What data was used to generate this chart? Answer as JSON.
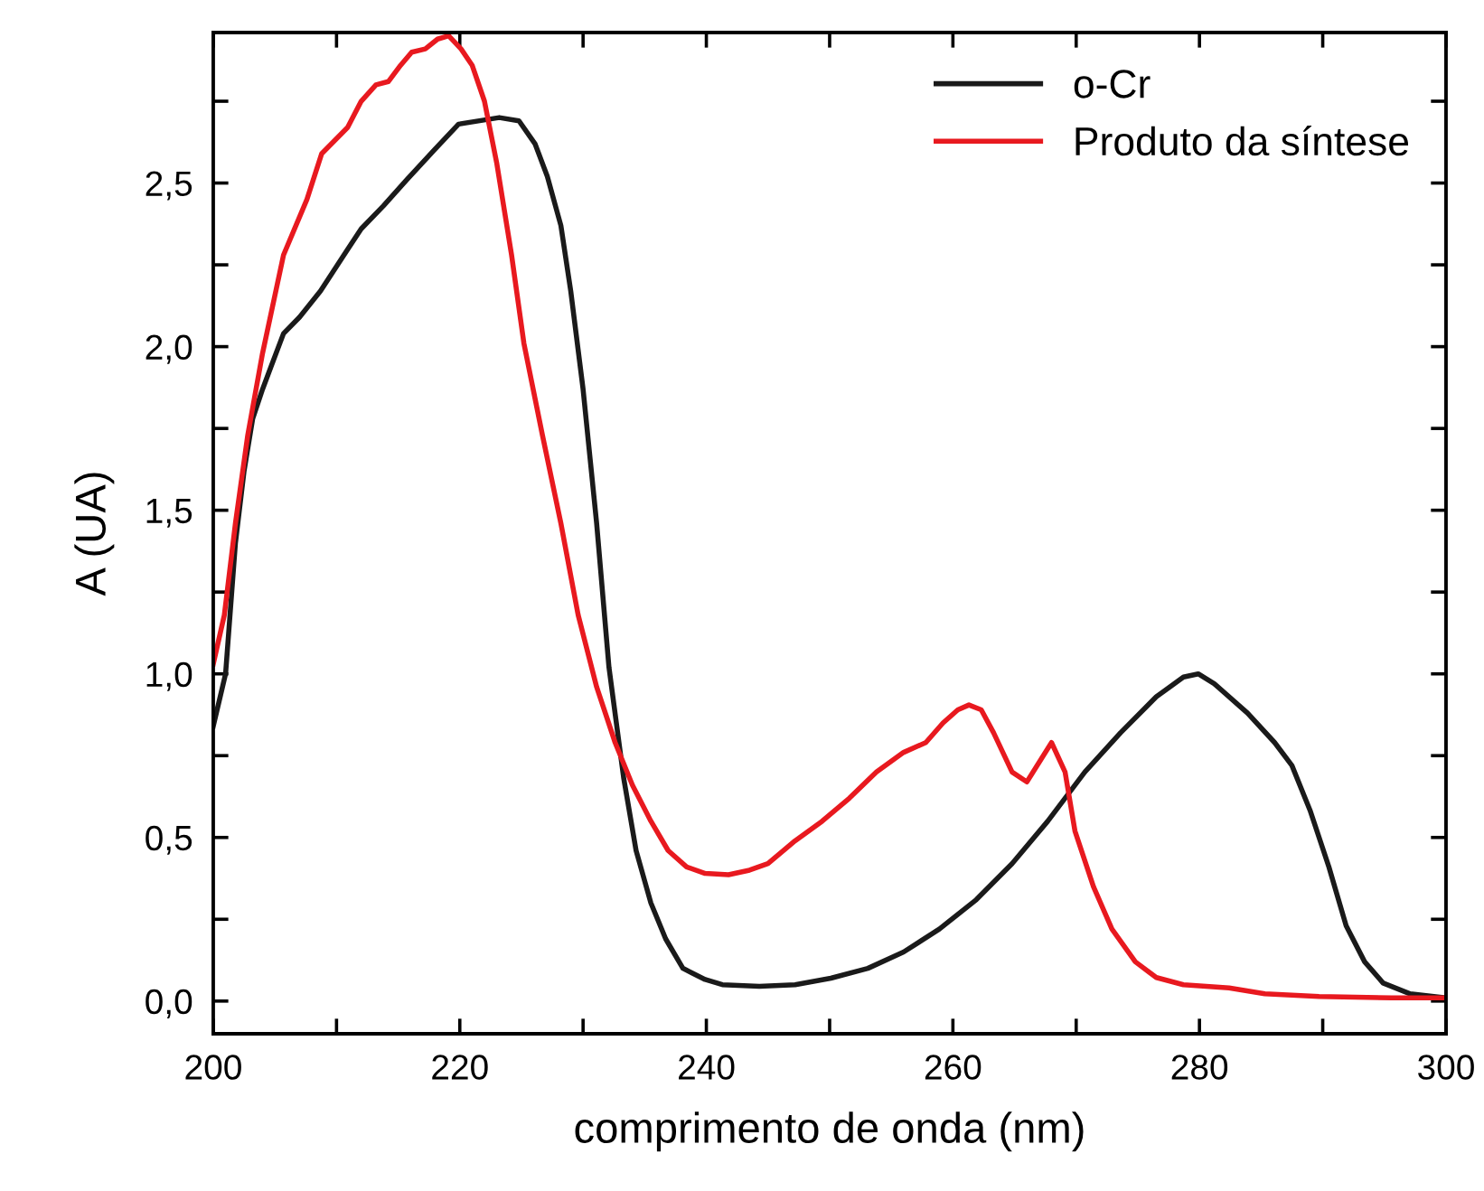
{
  "chart_data": {
    "type": "line",
    "xlabel": "comprimento de onda (nm)",
    "ylabel": "A (UA)",
    "xlim": [
      200,
      300
    ],
    "ylim": [
      -0.1,
      2.96
    ],
    "xticks": [
      200,
      {
        "value": 210,
        "label": null
      },
      220,
      {
        "value": 230,
        "label": null
      },
      240,
      {
        "value": 250,
        "label": null
      },
      260,
      {
        "value": 270,
        "label": null
      },
      280,
      {
        "value": 290,
        "label": null
      },
      300
    ],
    "yticks": [
      {
        "value": 0,
        "label": "0,0"
      },
      {
        "value": 0.25,
        "label": null
      },
      {
        "value": 0.5,
        "label": "0,5"
      },
      {
        "value": 0.75,
        "label": null
      },
      {
        "value": 1,
        "label": "1,0"
      },
      {
        "value": 1.25,
        "label": null
      },
      {
        "value": 1.5,
        "label": "1,5"
      },
      {
        "value": 1.75,
        "label": null
      },
      {
        "value": 2,
        "label": "2,0"
      },
      {
        "value": 2.25,
        "label": null
      },
      {
        "value": 2.5,
        "label": "2,5"
      },
      {
        "value": 2.75,
        "label": null
      }
    ],
    "grid": false,
    "legend": "top right",
    "marker": "none",
    "line_style": "solid",
    "series": [
      {
        "name": "o-Cr",
        "color": "#1a1a1a",
        "x": [
          200,
          201,
          201.8,
          202.5,
          203.2,
          204,
          204.7,
          205.7,
          207,
          208.7,
          210.6,
          212,
          213.8,
          215.7,
          217.9,
          219.9,
          223.2,
          224.8,
          226.1,
          227.1,
          228.2,
          229,
          230,
          231.1,
          232.1,
          233.3,
          234.3,
          235.5,
          236.7,
          238.1,
          239.9,
          241.3,
          244.3,
          247.2,
          250.1,
          253.1,
          256,
          258.9,
          261.9,
          264.8,
          267.7,
          270.7,
          273.6,
          276.5,
          278.7,
          279.9,
          281.2,
          283.9,
          286.1,
          287.5,
          289,
          290.5,
          291.9,
          293.4,
          294.9,
          297.1,
          300
        ],
        "values": [
          0.84,
          1.0,
          1.4,
          1.62,
          1.78,
          1.87,
          1.94,
          2.04,
          2.09,
          2.17,
          2.28,
          2.36,
          2.43,
          2.51,
          2.6,
          2.68,
          2.7,
          2.69,
          2.62,
          2.52,
          2.37,
          2.17,
          1.87,
          1.46,
          1.02,
          0.68,
          0.46,
          0.3,
          0.19,
          0.1,
          0.066,
          0.05,
          0.045,
          0.05,
          0.07,
          0.1,
          0.15,
          0.22,
          0.31,
          0.42,
          0.55,
          0.7,
          0.82,
          0.93,
          0.99,
          1.0,
          0.97,
          0.88,
          0.79,
          0.72,
          0.58,
          0.41,
          0.23,
          0.12,
          0.055,
          0.022,
          0.01
        ]
      },
      {
        "name": "Produto da síntese",
        "color": "#e8191f",
        "x": [
          200,
          200.9,
          201.8,
          202.8,
          204,
          205.7,
          207.6,
          208.8,
          210.9,
          212,
          213.2,
          214.2,
          215.2,
          216.1,
          217.2,
          218.2,
          219.1,
          220.1,
          221,
          222,
          223,
          224.2,
          225.2,
          226.7,
          228.2,
          229.6,
          231.1,
          232.6,
          234,
          235.5,
          236.9,
          238.4,
          239.9,
          241.8,
          243.5,
          245,
          247.2,
          249.4,
          251.6,
          253.8,
          256,
          257.8,
          259.2,
          260.4,
          261.3,
          262.3,
          263.3,
          264.8,
          266,
          268,
          269.1,
          269.9,
          271.4,
          272.9,
          274.8,
          276.5,
          278.7,
          282.4,
          285.3,
          289.7,
          295.6,
          300
        ],
        "values": [
          1.03,
          1.18,
          1.46,
          1.73,
          1.98,
          2.28,
          2.45,
          2.59,
          2.67,
          2.75,
          2.8,
          2.81,
          2.86,
          2.9,
          2.91,
          2.94,
          2.95,
          2.91,
          2.86,
          2.75,
          2.56,
          2.28,
          2.01,
          1.73,
          1.46,
          1.18,
          0.96,
          0.79,
          0.66,
          0.55,
          0.46,
          0.41,
          0.39,
          0.386,
          0.4,
          0.42,
          0.49,
          0.55,
          0.62,
          0.7,
          0.76,
          0.79,
          0.85,
          0.89,
          0.905,
          0.89,
          0.82,
          0.7,
          0.67,
          0.79,
          0.7,
          0.52,
          0.35,
          0.22,
          0.12,
          0.072,
          0.05,
          0.04,
          0.022,
          0.014,
          0.01,
          0.01
        ]
      }
    ]
  }
}
